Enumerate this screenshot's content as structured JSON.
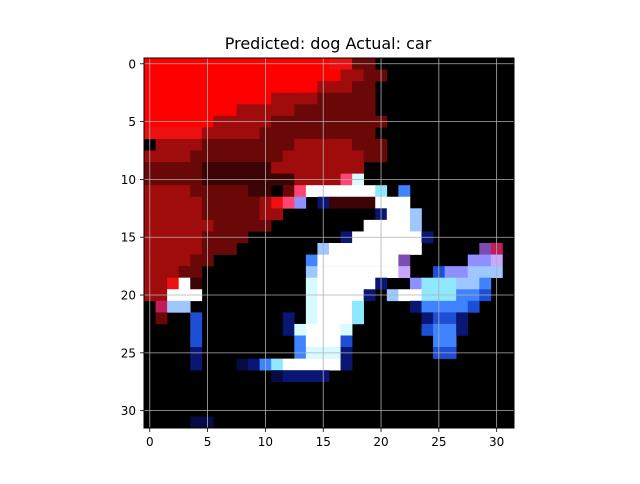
{
  "chart_data": {
    "type": "heatmap",
    "title": "Predicted: dog Actual: car",
    "xlabel": "",
    "ylabel": "",
    "grid": true,
    "xlim": [
      -0.5,
      31.5
    ],
    "ylim": [
      31.5,
      -0.5
    ],
    "xticks": [
      0,
      5,
      10,
      15,
      20,
      25,
      30
    ],
    "yticks": [
      0,
      5,
      10,
      15,
      20,
      25,
      30
    ],
    "image_size": [
      32,
      32
    ],
    "colors": {
      "background": "#000000",
      "bright_red": "#ff0000",
      "red": "#ee1010",
      "dark_red": "#a00c0c",
      "maroon": "#6a0808",
      "deep_maroon": "#3c0404",
      "white": "#ffffff",
      "light_cyan": "#d8fbff",
      "cyan": "#8ee8ff",
      "light_blue": "#9ec7ff",
      "blue": "#3f83ff",
      "mid_blue": "#1c4fd6",
      "navy": "#0a1673",
      "dark_navy": "#060b44",
      "violet": "#7c4db0",
      "lilac": "#c9a6ff",
      "periwinkle": "#8f8fff",
      "pink_red": "#ff4570",
      "magenta": "#c21d5a"
    },
    "pixels": {
      "rows": [
        {
          "y": 0,
          "spans": [
            [
              0,
              15,
              "bright_red"
            ],
            [
              16,
              17,
              "red"
            ],
            [
              18,
              19,
              "maroon"
            ]
          ]
        },
        {
          "y": 1,
          "spans": [
            [
              0,
              16,
              "bright_red"
            ],
            [
              17,
              18,
              "dark_red"
            ],
            [
              19,
              20,
              "maroon"
            ]
          ]
        },
        {
          "y": 2,
          "spans": [
            [
              0,
              14,
              "bright_red"
            ],
            [
              15,
              17,
              "dark_red"
            ],
            [
              18,
              19,
              "maroon"
            ]
          ]
        },
        {
          "y": 3,
          "spans": [
            [
              0,
              10,
              "bright_red"
            ],
            [
              11,
              14,
              "dark_red"
            ],
            [
              15,
              19,
              "maroon"
            ]
          ]
        },
        {
          "y": 4,
          "spans": [
            [
              0,
              7,
              "bright_red"
            ],
            [
              8,
              12,
              "dark_red"
            ],
            [
              13,
              19,
              "maroon"
            ]
          ]
        },
        {
          "y": 5,
          "spans": [
            [
              0,
              5,
              "bright_red"
            ],
            [
              6,
              10,
              "dark_red"
            ],
            [
              11,
              20,
              "maroon"
            ]
          ]
        },
        {
          "y": 6,
          "spans": [
            [
              0,
              4,
              "red"
            ],
            [
              5,
              9,
              "dark_red"
            ],
            [
              10,
              19,
              "maroon"
            ]
          ]
        },
        {
          "y": 7,
          "spans": [
            [
              1,
              4,
              "dark_red"
            ],
            [
              5,
              12,
              "maroon"
            ],
            [
              13,
              17,
              "dark_red"
            ],
            [
              18,
              20,
              "maroon"
            ]
          ]
        },
        {
          "y": 8,
          "spans": [
            [
              0,
              3,
              "dark_red"
            ],
            [
              4,
              11,
              "maroon"
            ],
            [
              12,
              18,
              "dark_red"
            ],
            [
              19,
              20,
              "maroon"
            ]
          ]
        },
        {
          "y": 9,
          "spans": [
            [
              0,
              4,
              "maroon"
            ],
            [
              5,
              10,
              "deep_maroon"
            ],
            [
              11,
              18,
              "dark_red"
            ]
          ]
        },
        {
          "y": 10,
          "spans": [
            [
              0,
              4,
              "maroon"
            ],
            [
              5,
              12,
              "deep_maroon"
            ],
            [
              13,
              16,
              "dark_red"
            ],
            [
              17,
              17,
              "pink_red"
            ],
            [
              18,
              18,
              "light_cyan"
            ]
          ]
        },
        {
          "y": 11,
          "spans": [
            [
              0,
              3,
              "dark_red"
            ],
            [
              4,
              8,
              "maroon"
            ],
            [
              9,
              10,
              "deep_maroon"
            ],
            [
              12,
              12,
              "maroon"
            ],
            [
              13,
              13,
              "pink_red"
            ],
            [
              14,
              19,
              "white"
            ],
            [
              20,
              20,
              "cyan"
            ],
            [
              22,
              22,
              "blue"
            ]
          ]
        },
        {
          "y": 12,
          "spans": [
            [
              0,
              4,
              "dark_red"
            ],
            [
              5,
              9,
              "maroon"
            ],
            [
              10,
              10,
              "dark_red"
            ],
            [
              11,
              11,
              "red"
            ],
            [
              12,
              12,
              "pink_red"
            ],
            [
              13,
              13,
              "periwinkle"
            ],
            [
              15,
              15,
              "navy"
            ],
            [
              16,
              19,
              "deep_maroon"
            ],
            [
              20,
              20,
              "white"
            ],
            [
              21,
              22,
              "white"
            ]
          ]
        },
        {
          "y": 13,
          "spans": [
            [
              0,
              4,
              "dark_red"
            ],
            [
              5,
              9,
              "maroon"
            ],
            [
              10,
              11,
              "dark_red"
            ],
            [
              20,
              20,
              "navy"
            ],
            [
              21,
              22,
              "white"
            ],
            [
              23,
              23,
              "light_blue"
            ]
          ]
        },
        {
          "y": 14,
          "spans": [
            [
              0,
              5,
              "dark_red"
            ],
            [
              6,
              10,
              "maroon"
            ],
            [
              19,
              22,
              "white"
            ],
            [
              23,
              23,
              "light_blue"
            ]
          ]
        },
        {
          "y": 15,
          "spans": [
            [
              0,
              4,
              "dark_red"
            ],
            [
              5,
              8,
              "maroon"
            ],
            [
              17,
              17,
              "navy"
            ],
            [
              18,
              23,
              "white"
            ],
            [
              24,
              24,
              "navy"
            ]
          ]
        },
        {
          "y": 16,
          "spans": [
            [
              0,
              4,
              "dark_red"
            ],
            [
              5,
              7,
              "maroon"
            ],
            [
              15,
              15,
              "light_blue"
            ],
            [
              16,
              23,
              "white"
            ],
            [
              29,
              29,
              "violet"
            ],
            [
              30,
              30,
              "magenta"
            ]
          ]
        },
        {
          "y": 17,
          "spans": [
            [
              0,
              3,
              "dark_red"
            ],
            [
              4,
              5,
              "maroon"
            ],
            [
              14,
              14,
              "blue"
            ],
            [
              15,
              21,
              "white"
            ],
            [
              22,
              22,
              "violet"
            ],
            [
              28,
              29,
              "periwinkle"
            ],
            [
              30,
              30,
              "lilac"
            ]
          ]
        },
        {
          "y": 18,
          "spans": [
            [
              0,
              2,
              "dark_red"
            ],
            [
              3,
              4,
              "maroon"
            ],
            [
              14,
              14,
              "light_blue"
            ],
            [
              15,
              21,
              "white"
            ],
            [
              22,
              22,
              "lilac"
            ],
            [
              25,
              25,
              "mid_blue"
            ],
            [
              26,
              27,
              "periwinkle"
            ],
            [
              28,
              29,
              "light_blue"
            ],
            [
              30,
              30,
              "light_blue"
            ]
          ]
        },
        {
          "y": 19,
          "spans": [
            [
              0,
              1,
              "dark_red"
            ],
            [
              2,
              2,
              "red"
            ],
            [
              3,
              3,
              "white"
            ],
            [
              4,
              4,
              "deep_maroon"
            ],
            [
              14,
              14,
              "light_cyan"
            ],
            [
              15,
              19,
              "white"
            ],
            [
              20,
              20,
              "navy"
            ],
            [
              23,
              23,
              "periwinkle"
            ],
            [
              24,
              26,
              "cyan"
            ],
            [
              27,
              28,
              "light_blue"
            ],
            [
              29,
              29,
              "blue"
            ]
          ]
        },
        {
          "y": 20,
          "spans": [
            [
              0,
              1,
              "dark_red"
            ],
            [
              2,
              4,
              "white"
            ],
            [
              14,
              14,
              "light_cyan"
            ],
            [
              15,
              18,
              "white"
            ],
            [
              19,
              19,
              "navy"
            ],
            [
              21,
              21,
              "light_blue"
            ],
            [
              22,
              23,
              "white"
            ],
            [
              24,
              26,
              "cyan"
            ],
            [
              27,
              28,
              "blue"
            ],
            [
              29,
              29,
              "mid_blue"
            ]
          ]
        },
        {
          "y": 21,
          "spans": [
            [
              1,
              1,
              "magenta"
            ],
            [
              2,
              2,
              "light_blue"
            ],
            [
              3,
              3,
              "light_blue"
            ],
            [
              14,
              14,
              "light_cyan"
            ],
            [
              15,
              17,
              "white"
            ],
            [
              18,
              18,
              "cyan"
            ],
            [
              23,
              23,
              "navy"
            ],
            [
              24,
              27,
              "blue"
            ],
            [
              28,
              28,
              "mid_blue"
            ]
          ]
        },
        {
          "y": 22,
          "spans": [
            [
              1,
              1,
              "maroon"
            ],
            [
              4,
              4,
              "mid_blue"
            ],
            [
              12,
              12,
              "navy"
            ],
            [
              14,
              14,
              "light_cyan"
            ],
            [
              15,
              17,
              "white"
            ],
            [
              18,
              18,
              "cyan"
            ],
            [
              24,
              24,
              "navy"
            ],
            [
              25,
              26,
              "mid_blue"
            ],
            [
              27,
              27,
              "navy"
            ]
          ]
        },
        {
          "y": 23,
          "spans": [
            [
              4,
              4,
              "mid_blue"
            ],
            [
              12,
              12,
              "navy"
            ],
            [
              13,
              13,
              "light_cyan"
            ],
            [
              14,
              16,
              "white"
            ],
            [
              17,
              17,
              "light_cyan"
            ],
            [
              24,
              24,
              "mid_blue"
            ],
            [
              25,
              26,
              "blue"
            ],
            [
              27,
              27,
              "navy"
            ]
          ]
        },
        {
          "y": 24,
          "spans": [
            [
              4,
              4,
              "mid_blue"
            ],
            [
              13,
              13,
              "blue"
            ],
            [
              14,
              16,
              "white"
            ],
            [
              17,
              17,
              "mid_blue"
            ],
            [
              25,
              26,
              "blue"
            ]
          ]
        },
        {
          "y": 25,
          "spans": [
            [
              4,
              4,
              "navy"
            ],
            [
              13,
              13,
              "blue"
            ],
            [
              14,
              16,
              "light_cyan"
            ],
            [
              17,
              17,
              "navy"
            ],
            [
              25,
              26,
              "mid_blue"
            ]
          ]
        },
        {
          "y": 26,
          "spans": [
            [
              4,
              4,
              "navy"
            ],
            [
              8,
              8,
              "dark_navy"
            ],
            [
              9,
              9,
              "navy"
            ],
            [
              10,
              10,
              "blue"
            ],
            [
              11,
              11,
              "cyan"
            ],
            [
              12,
              16,
              "white"
            ],
            [
              17,
              17,
              "navy"
            ]
          ]
        },
        {
          "y": 27,
          "spans": [
            [
              11,
              11,
              "dark_navy"
            ],
            [
              12,
              15,
              "navy"
            ]
          ]
        },
        {
          "y": 31,
          "spans": [
            [
              4,
              5,
              "dark_navy"
            ]
          ]
        }
      ]
    }
  }
}
